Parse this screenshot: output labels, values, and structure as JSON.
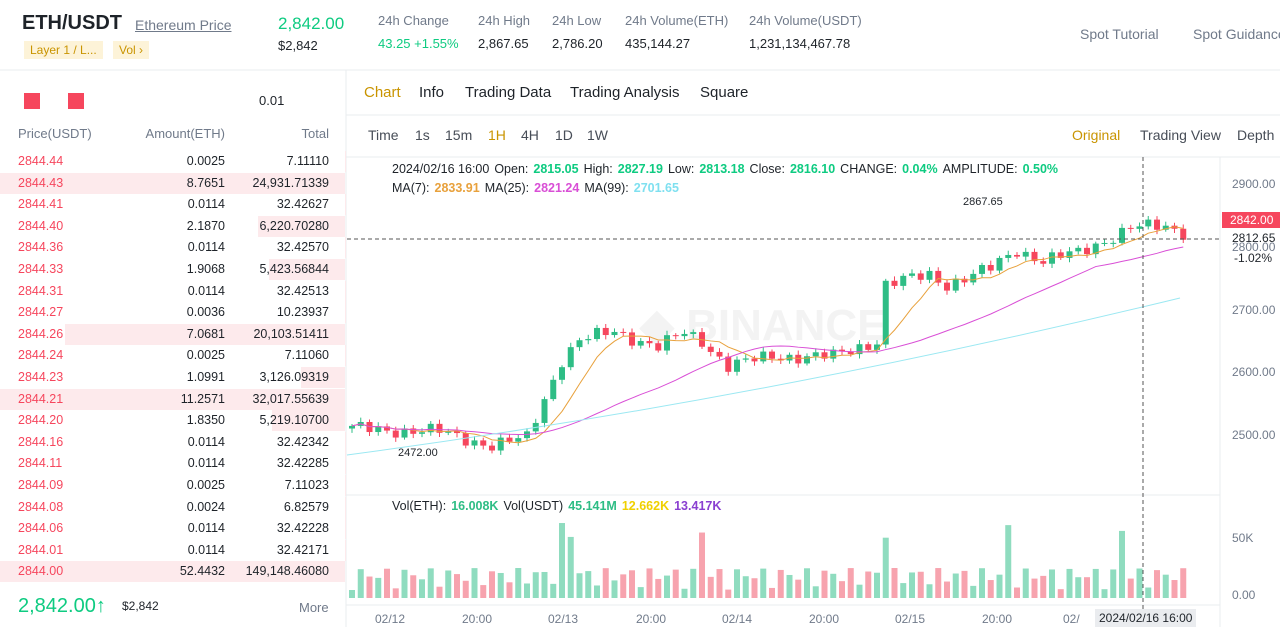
{
  "header": {
    "pair": "ETH/USDT",
    "link": "Ethereum Price",
    "tags": [
      "Layer 1 / L...",
      "Vol ›"
    ],
    "price": "2,842.00",
    "price_usd": "$2,842",
    "stats": [
      {
        "label": "24h Change",
        "value": "43.25 +1.55%"
      },
      {
        "label": "24h High",
        "value": "2,867.65"
      },
      {
        "label": "24h Low",
        "value": "2,786.20"
      },
      {
        "label": "24h Volume(ETH)",
        "value": "435,144.27"
      },
      {
        "label": "24h Volume(USDT)",
        "value": "1,231,134,467.78"
      }
    ],
    "actions": [
      "Spot Tutorial",
      "Spot Guidance"
    ]
  },
  "orderbook": {
    "precision": "0.01",
    "headers": [
      "Price(USDT)",
      "Amount(ETH)",
      "Total"
    ],
    "rows": [
      [
        "2844.44",
        "0.0025",
        "7.11110"
      ],
      [
        "2844.43",
        "8.7651",
        "24,931.71339"
      ],
      [
        "2844.41",
        "0.0114",
        "32.42627"
      ],
      [
        "2844.40",
        "2.1870",
        "6,220.70280"
      ],
      [
        "2844.36",
        "0.0114",
        "32.42570"
      ],
      [
        "2844.33",
        "1.9068",
        "5,423.56844"
      ],
      [
        "2844.31",
        "0.0114",
        "32.42513"
      ],
      [
        "2844.27",
        "0.0036",
        "10.23937"
      ],
      [
        "2844.26",
        "7.0681",
        "20,103.51411"
      ],
      [
        "2844.24",
        "0.0025",
        "7.11060"
      ],
      [
        "2844.23",
        "1.0991",
        "3,126.09319"
      ],
      [
        "2844.21",
        "11.2571",
        "32,017.55639"
      ],
      [
        "2844.20",
        "1.8350",
        "5,219.10700"
      ],
      [
        "2844.16",
        "0.0114",
        "32.42342"
      ],
      [
        "2844.11",
        "0.0114",
        "32.42285"
      ],
      [
        "2844.09",
        "0.0025",
        "7.11023"
      ],
      [
        "2844.08",
        "0.0024",
        "6.82579"
      ],
      [
        "2844.06",
        "0.0114",
        "32.42228"
      ],
      [
        "2844.01",
        "0.0114",
        "32.42171"
      ],
      [
        "2844.00",
        "52.4432",
        "149,148.46080"
      ]
    ],
    "last_price": "2,842.00↑",
    "last_usd": "$2,842",
    "more": "More"
  },
  "tabs": [
    "Chart",
    "Info",
    "Trading Data",
    "Trading Analysis",
    "Square"
  ],
  "toolbar": {
    "intervals": [
      "Time",
      "1s",
      "15m",
      "1H",
      "4H",
      "1D",
      "1W"
    ],
    "views": [
      "Original",
      "Trading View",
      "Depth"
    ]
  },
  "chart": {
    "date": "2024/02/16 16:00",
    "ohlc": [
      {
        "label": "Open:",
        "value": "2815.05"
      },
      {
        "label": "High:",
        "value": "2827.19"
      },
      {
        "label": "Low:",
        "value": "2813.18"
      },
      {
        "label": "Close:",
        "value": "2816.10"
      },
      {
        "label": "CHANGE:",
        "value": "0.04%"
      },
      {
        "label": "AMPLITUDE:",
        "value": "0.50%"
      }
    ],
    "ma": [
      {
        "label": "MA(7):",
        "value": "2833.91",
        "color": "#e8a13c"
      },
      {
        "label": "MA(25):",
        "value": "2821.24",
        "color": "#d94fd6"
      },
      {
        "label": "MA(99):",
        "value": "2701.65",
        "color": "#7fe0f0"
      }
    ],
    "vol": [
      {
        "label": "Vol(ETH):",
        "value": "16.008K",
        "color": "#2ebd85"
      },
      {
        "label": "Vol(USDT)",
        "value": "45.141M",
        "color": "#2ebd85"
      },
      {
        "label": "",
        "value": "12.662K",
        "color": "#f0d000"
      },
      {
        "label": "",
        "value": "13.417K",
        "color": "#8a3fd1"
      }
    ],
    "yaxis": [
      "2900.00",
      "2800.00",
      "2700.00",
      "2600.00",
      "2500.00"
    ],
    "vol_axis": [
      "50K",
      "0.00"
    ],
    "current": "2842.00",
    "cross_price": "2812.65",
    "cross_change": "-1.02%",
    "high_note": "2867.65",
    "low_note": "2472.00",
    "xaxis": [
      "02/12",
      "20:00",
      "02/13",
      "20:00",
      "02/14",
      "20:00",
      "02/15",
      "20:00",
      "02/"
    ],
    "cross_time": "2024/02/16 16:00"
  }
}
